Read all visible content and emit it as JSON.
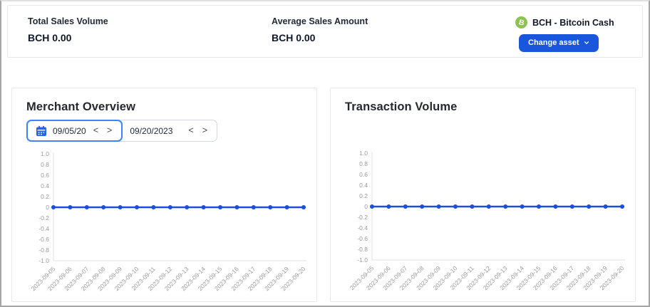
{
  "topbar": {
    "stats": [
      {
        "label": "Total Sales Volume",
        "value": "BCH 0.00"
      },
      {
        "label": "Average Sales Amount",
        "value": "BCH 0.00"
      }
    ],
    "asset": {
      "symbol": "B",
      "name": "BCH - Bitcoin Cash",
      "icon": "bitcoin-cash-icon",
      "icon_color": "#8dc351",
      "button_label": "Change asset",
      "button_icon": "chevron-down",
      "button_color": "#1a56db"
    }
  },
  "merchant_panel": {
    "title": "Merchant Overview",
    "date_picker": {
      "start_value": "09/05/20",
      "end_value": "09/20/2023",
      "prev_label": "<",
      "next_label": ">",
      "icons": {
        "calendar": "calendar",
        "prev": "chevron-left",
        "next": "chevron-right"
      }
    }
  },
  "transaction_panel": {
    "title": "Transaction Volume"
  },
  "chart_data": [
    {
      "type": "line",
      "title": "Merchant Overview",
      "x": [
        "2023-09-05",
        "2023-09-06",
        "2023-09-07",
        "2023-09-08",
        "2023-09-09",
        "2023-09-10",
        "2023-09-11",
        "2023-09-12",
        "2023-09-13",
        "2023-09-14",
        "2023-09-15",
        "2023-09-16",
        "2023-09-17",
        "2023-09-18",
        "2023-09-19",
        "2023-09-20"
      ],
      "values": [
        0,
        0,
        0,
        0,
        0,
        0,
        0,
        0,
        0,
        0,
        0,
        0,
        0,
        0,
        0,
        0
      ],
      "ylim": [
        -1.0,
        1.0
      ],
      "yticks": [
        1.0,
        0.8,
        0.6,
        0.4,
        0.2,
        0,
        -0.2,
        -0.4,
        -0.6,
        -0.8,
        -1.0
      ],
      "ytick_labels": [
        "1.0",
        "0.8",
        "0.6",
        "0.4",
        "0.2",
        "0",
        "-0.2",
        "-0.4",
        "-0.6",
        "-0.8",
        "-1.0"
      ],
      "xlabel": "",
      "ylabel": "",
      "grid": false,
      "legend": "none",
      "x_label_rotation": -45,
      "line_color": "#1d4ed8",
      "marker": "dot"
    },
    {
      "type": "line",
      "title": "Transaction Volume",
      "x": [
        "2023-09-05",
        "2023-09-06",
        "2023-09-07",
        "2023-09-08",
        "2023-09-09",
        "2023-09-10",
        "2023-09-11",
        "2023-09-12",
        "2023-09-13",
        "2023-09-14",
        "2023-09-15",
        "2023-09-16",
        "2023-09-17",
        "2023-09-18",
        "2023-09-19",
        "2023-09-20"
      ],
      "values": [
        0,
        0,
        0,
        0,
        0,
        0,
        0,
        0,
        0,
        0,
        0,
        0,
        0,
        0,
        0,
        0
      ],
      "ylim": [
        -1.0,
        1.0
      ],
      "yticks": [
        1.0,
        0.8,
        0.6,
        0.4,
        0.2,
        0,
        -0.2,
        -0.4,
        -0.6,
        -0.8,
        -1.0
      ],
      "ytick_labels": [
        "1.0",
        "0.8",
        "0.6",
        "0.4",
        "0.2",
        "0",
        "-0.2",
        "-0.4",
        "-0.6",
        "-0.8",
        "-1.0"
      ],
      "xlabel": "",
      "ylabel": "",
      "grid": false,
      "legend": "none",
      "x_label_rotation": -45,
      "line_color": "#1d4ed8",
      "marker": "dot"
    }
  ],
  "colors": {
    "axis_text": "#9b9b9b",
    "axis_line": "#e2e2e2",
    "panel_border": "#e8e8ea",
    "accent_blue": "#1a56db",
    "focus_blue": "#3f83f8",
    "line_blue": "#1d4ed8",
    "bch_green": "#8dc351"
  }
}
